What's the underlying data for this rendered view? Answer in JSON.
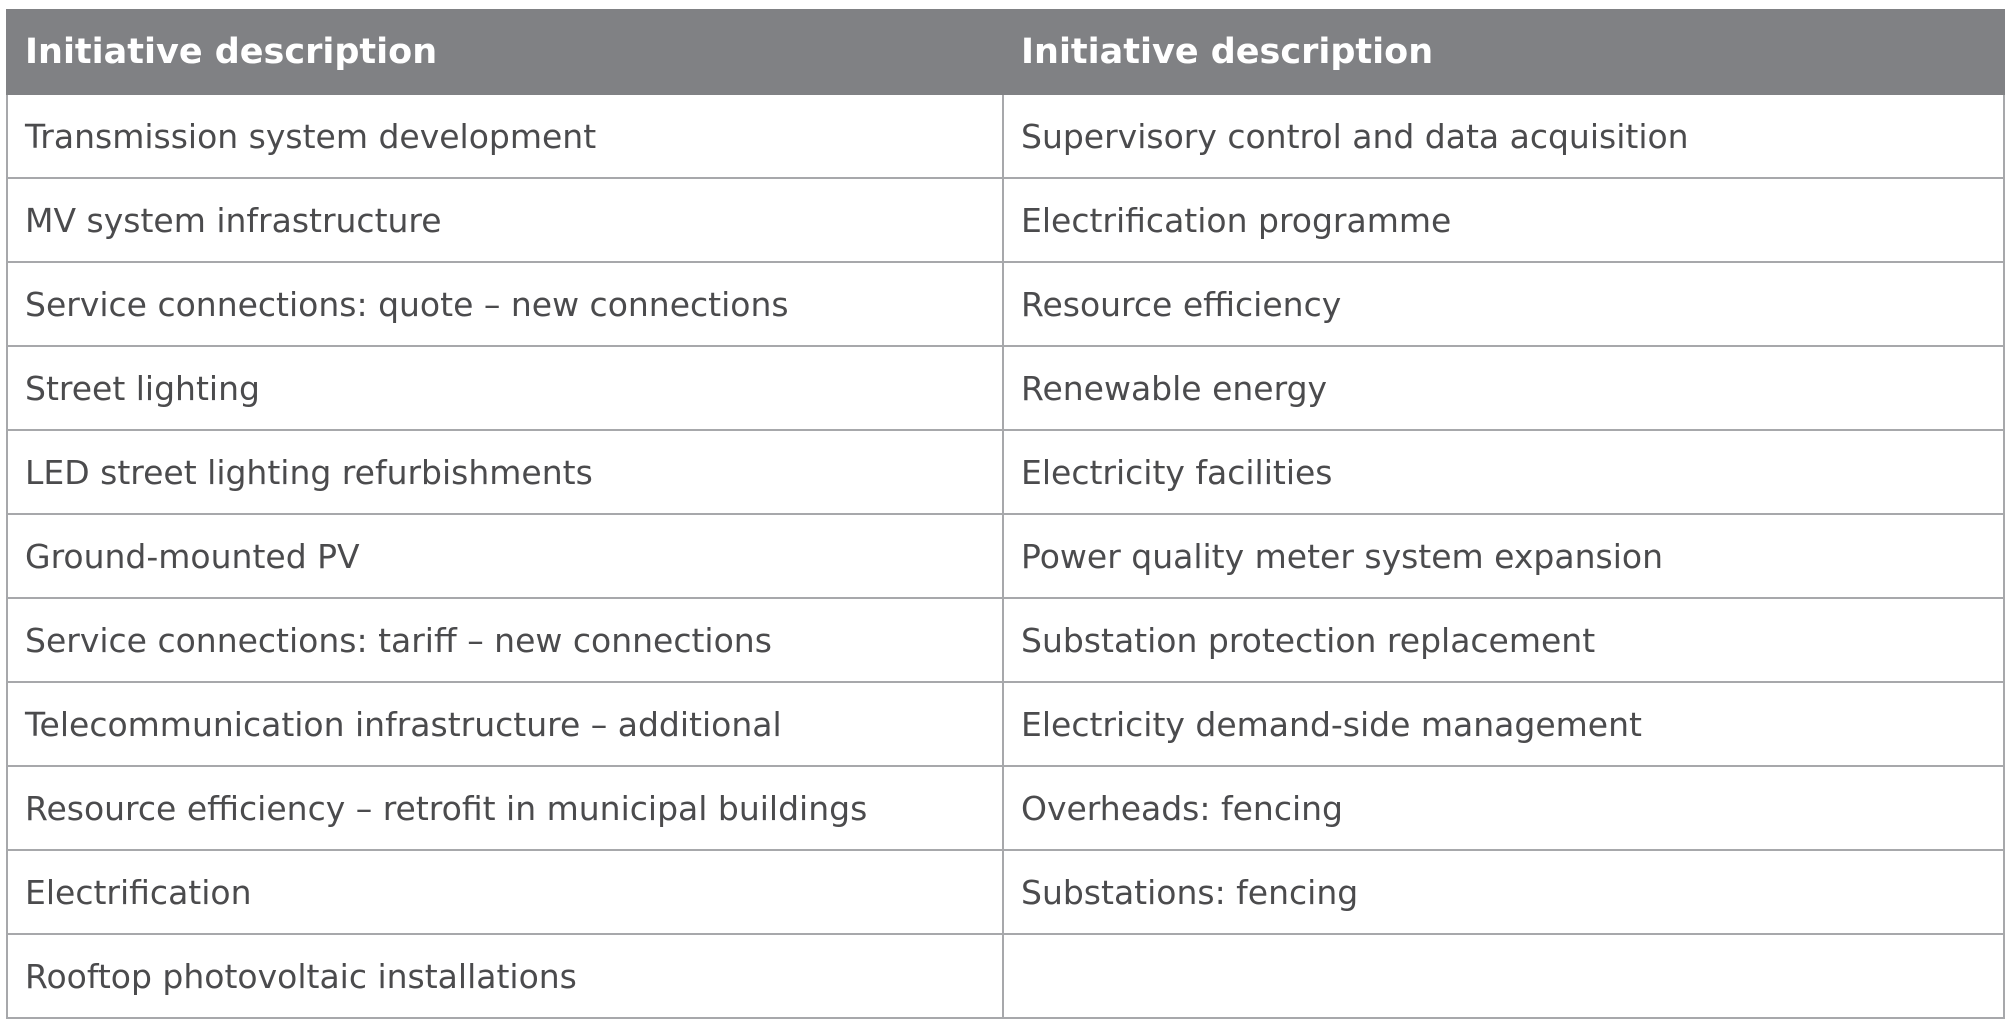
{
  "table": {
    "headers": [
      "Initiative description",
      "Initiative description"
    ],
    "rows": [
      [
        "Transmission system development",
        "Supervisory control and data acquisition"
      ],
      [
        "MV system infrastructure",
        "Electrification programme"
      ],
      [
        "Service connections: quote – new connections",
        "Resource efficiency"
      ],
      [
        "Street lighting",
        "Renewable energy"
      ],
      [
        "LED street lighting refurbishments",
        "Electricity facilities"
      ],
      [
        "Ground-mounted PV",
        "Power quality meter system expansion"
      ],
      [
        "Service connections: tariff – new connections",
        "Substation protection replacement"
      ],
      [
        "Telecommunication infrastructure – additional",
        "Electricity demand-side management"
      ],
      [
        "Resource efficiency – retrofit in municipal buildings",
        "Overheads: fencing"
      ],
      [
        "Electrification",
        "Substations: fencing"
      ],
      [
        "Rooftop photovoltaic installations",
        ""
      ]
    ]
  },
  "colors": {
    "header_bg": "#808184",
    "header_text": "#ffffff",
    "cell_text": "#4b4b4d",
    "grid_line": "#a7a8ab"
  }
}
